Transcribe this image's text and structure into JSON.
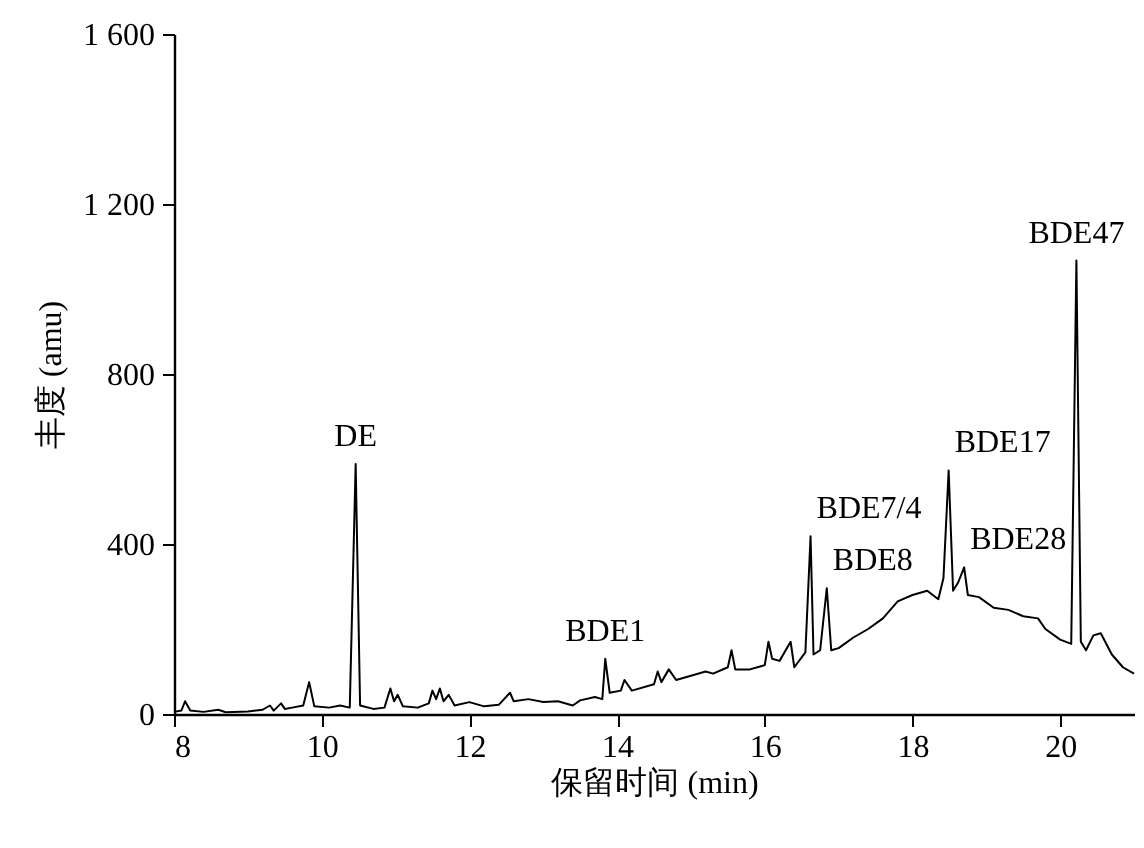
{
  "chart_data": {
    "type": "line",
    "xlabel": "保留时间 (min)",
    "ylabel": "丰度 (amu)",
    "xlim": [
      8,
      21
    ],
    "xticks": [
      8,
      10,
      12,
      14,
      16,
      18,
      20
    ],
    "ylim": [
      0,
      1600
    ],
    "yticks": [
      0,
      400,
      800,
      {
        "value": 1200,
        "label": "1 200"
      },
      {
        "value": 1600,
        "label": "1 600"
      }
    ],
    "grid": false,
    "marker": "none",
    "line_style": "solid",
    "x": [
      8.0,
      8.1,
      8.15,
      8.22,
      8.4,
      8.6,
      8.7,
      9.0,
      9.2,
      9.3,
      9.35,
      9.45,
      9.5,
      9.6,
      9.75,
      9.83,
      9.9,
      10.1,
      10.25,
      10.38,
      10.46,
      10.52,
      10.7,
      10.85,
      10.93,
      10.98,
      11.03,
      11.1,
      11.3,
      11.45,
      11.5,
      11.55,
      11.6,
      11.65,
      11.72,
      11.8,
      12.0,
      12.2,
      12.4,
      12.55,
      12.6,
      12.8,
      13.0,
      13.2,
      13.4,
      13.5,
      13.7,
      13.8,
      13.84,
      13.9,
      14.05,
      14.1,
      14.2,
      14.5,
      14.55,
      14.6,
      14.7,
      14.8,
      15.0,
      15.2,
      15.3,
      15.5,
      15.55,
      15.6,
      15.8,
      16.0,
      16.05,
      16.1,
      16.2,
      16.35,
      16.4,
      16.55,
      16.62,
      16.66,
      16.75,
      16.84,
      16.9,
      17.0,
      17.2,
      17.4,
      17.6,
      17.8,
      18.0,
      18.2,
      18.35,
      18.42,
      18.49,
      18.55,
      18.62,
      18.7,
      18.75,
      18.9,
      19.1,
      19.3,
      19.5,
      19.7,
      19.8,
      20.0,
      20.15,
      20.22,
      20.28,
      20.35,
      20.45,
      20.55,
      20.7,
      20.85,
      21.0
    ],
    "series": [
      {
        "color": "#000000",
        "values": [
          5,
          8,
          30,
          8,
          5,
          10,
          4,
          6,
          10,
          20,
          8,
          25,
          12,
          15,
          20,
          75,
          18,
          15,
          20,
          15,
          588,
          20,
          12,
          15,
          60,
          30,
          45,
          18,
          15,
          25,
          55,
          35,
          60,
          30,
          45,
          20,
          28,
          18,
          22,
          50,
          30,
          35,
          28,
          30,
          20,
          32,
          40,
          35,
          130,
          50,
          55,
          80,
          55,
          70,
          100,
          75,
          105,
          80,
          90,
          100,
          95,
          110,
          150,
          105,
          105,
          115,
          170,
          130,
          125,
          170,
          110,
          145,
          418,
          140,
          150,
          296,
          150,
          155,
          180,
          200,
          225,
          265,
          280,
          290,
          270,
          320,
          573,
          290,
          310,
          345,
          280,
          275,
          250,
          245,
          230,
          225,
          200,
          175,
          165,
          1067,
          170,
          150,
          185,
          190,
          140,
          110,
          95
        ]
      }
    ],
    "annotations": [
      {
        "text": "DE",
        "x": 10.46,
        "y": 588
      },
      {
        "text": "BDE1",
        "x": 13.84,
        "y": 130
      },
      {
        "text": "BDE7/4",
        "x": 16.62,
        "y": 418
      },
      {
        "text": "BDE8",
        "x": 16.84,
        "y": 296
      },
      {
        "text": "BDE17",
        "x": 18.49,
        "y": 573
      },
      {
        "text": "BDE28",
        "x": 18.7,
        "y": 345
      },
      {
        "text": "BDE47",
        "x": 20.22,
        "y": 1067
      }
    ]
  }
}
